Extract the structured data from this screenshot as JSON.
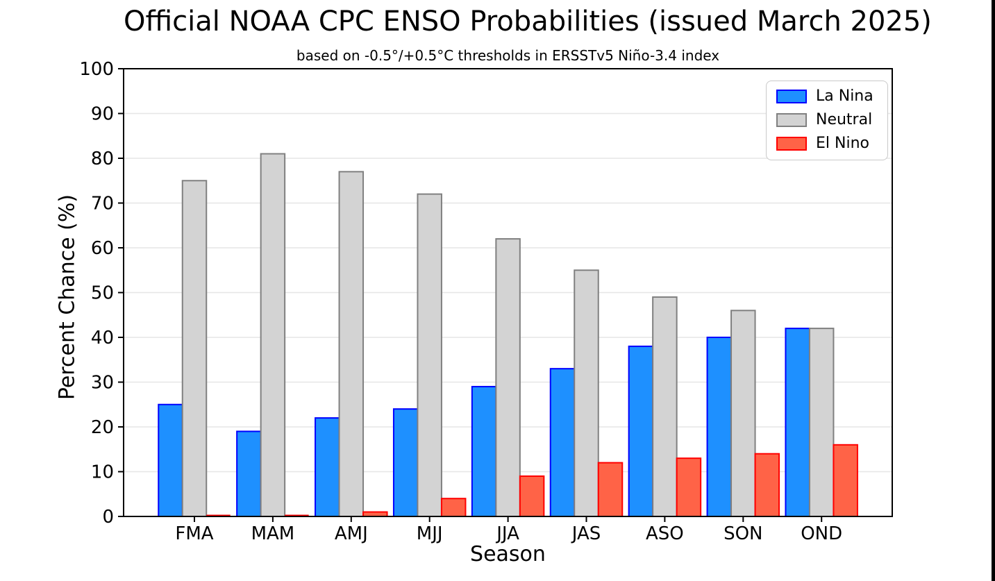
{
  "figure": {
    "background": "#ffffff",
    "spine_color": "#000000",
    "grid_color": "#e6e6e6",
    "tick_color": "#000000",
    "screen_right_border_color": "#000000"
  },
  "chart_data": {
    "type": "bar",
    "title": "Official NOAA CPC ENSO Probabilities (issued March 2025)",
    "subtitle": "based on -0.5°/+0.5°C thresholds in ERSSTv5 Niño-3.4 index",
    "xlabel": "Season",
    "ylabel": "Percent Chance (%)",
    "ylim": [
      0,
      100
    ],
    "yticks": [
      0,
      10,
      20,
      30,
      40,
      50,
      60,
      70,
      80,
      90,
      100
    ],
    "grid": true,
    "legend_position": "upper right",
    "categories": [
      "FMA",
      "MAM",
      "AMJ",
      "MJJ",
      "JJA",
      "JAS",
      "ASO",
      "SON",
      "OND"
    ],
    "series": [
      {
        "name": "La Nina",
        "fill": "#1E90FF",
        "edge": "#0000FF",
        "values": [
          25,
          19,
          22,
          24,
          29,
          33,
          38,
          40,
          42
        ]
      },
      {
        "name": "Neutral",
        "fill": "#D3D3D3",
        "edge": "#808080",
        "values": [
          75,
          81,
          77,
          72,
          62,
          55,
          49,
          46,
          42
        ]
      },
      {
        "name": "El Nino",
        "fill": "#FF6347",
        "edge": "#FF0000",
        "values": [
          0,
          0,
          1,
          4,
          9,
          12,
          13,
          14,
          16
        ]
      }
    ]
  }
}
